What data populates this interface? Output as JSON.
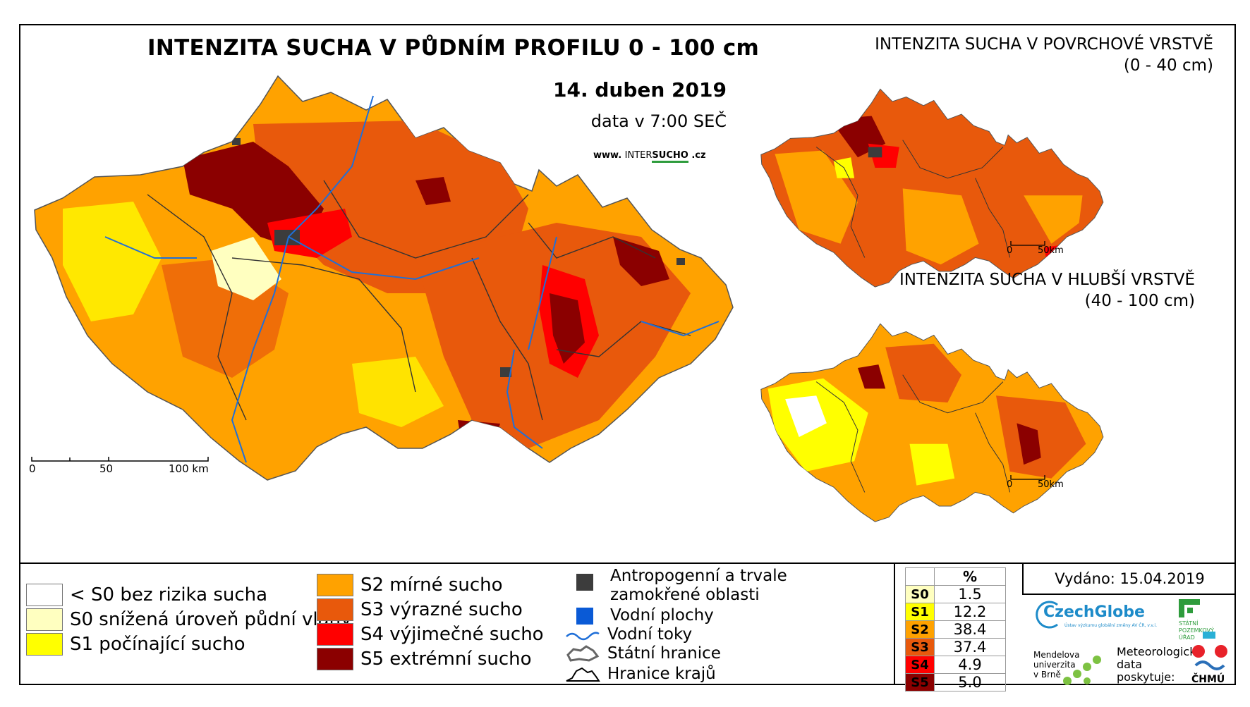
{
  "main": {
    "title": "INTENZITA SUCHA V PŮDNÍM PROFILU 0 - 100 cm",
    "date": "14. duben 2019",
    "data_time": "data v 7:00 SEČ",
    "website_prefix": "www.",
    "website_mid": "INTER",
    "website_brand": "SUCHO",
    "website_suffix": ".cz",
    "scale": {
      "zero": "0",
      "mid": "50",
      "end": "100 km"
    }
  },
  "inset_surface": {
    "title_line1": "INTENZITA SUCHA V POVRCHOVÉ VRSTVĚ",
    "title_line2": "(0 - 40 cm)",
    "scale": {
      "zero": "0",
      "end": "50km"
    }
  },
  "inset_deep": {
    "title_line1": "INTENZITA SUCHA V HLUBŠÍ VRSTVĚ",
    "title_line2": "(40 - 100 cm)",
    "scale": {
      "zero": "0",
      "end": "50km"
    }
  },
  "legend": {
    "classes": [
      {
        "label": "< S0 bez rizika sucha",
        "color": "#ffffff"
      },
      {
        "label": "S0 snížená úroveň půdní vláhy",
        "color": "#ffffc0"
      },
      {
        "label": "S1 počínající sucho",
        "color": "#ffff00"
      },
      {
        "label": "S2 mírné sucho",
        "color": "#ffa200"
      },
      {
        "label": "S3 výrazné sucho",
        "color": "#e8590c"
      },
      {
        "label": "S4 výjimečné sucho",
        "color": "#ff0000"
      },
      {
        "label": "S5 extrémní sucho",
        "color": "#8b0000"
      }
    ],
    "symbols": {
      "anthropogenic_line1": "Antropogenní a trvale",
      "anthropogenic_line2": "zamokřené oblasti",
      "water_bodies": "Vodní plochy",
      "rivers": "Vodní toky",
      "state_border": "Státní hranice",
      "region_border": "Hranice krajů"
    },
    "symbol_colors": {
      "anthropogenic": "#3c3c3c",
      "water": "#0a5ad6",
      "river": "#1f6fd8"
    }
  },
  "percent_table": {
    "header": "%",
    "rows": [
      {
        "cls": "S0",
        "value": "1.5",
        "color": "#ffffc0"
      },
      {
        "cls": "S1",
        "value": "12.2",
        "color": "#ffff00"
      },
      {
        "cls": "S2",
        "value": "38.4",
        "color": "#ffa200"
      },
      {
        "cls": "S3",
        "value": "37.4",
        "color": "#e8590c"
      },
      {
        "cls": "S4",
        "value": "4.9",
        "color": "#ff0000"
      },
      {
        "cls": "S5",
        "value": "5.0",
        "color": "#8b0000"
      }
    ]
  },
  "issued": "Vydáno: 15.04.2019",
  "providers": {
    "czechglobe": "CzechGlobe",
    "czechglobe_sub": "Ústav výzkumu globální změny AV ČR, v.v.i.",
    "spu_line1": "STÁTNÍ",
    "spu_line2": "POZEMKOVÝ",
    "spu_line3": "ÚŘAD",
    "mendel_line1": "Mendelova",
    "mendel_line2": "univerzita",
    "mendel_line3": "v Brně",
    "met_line1": "Meteorologická",
    "met_line2": "data",
    "met_line3": "poskytuje:",
    "chmu": "ČHMÚ"
  }
}
